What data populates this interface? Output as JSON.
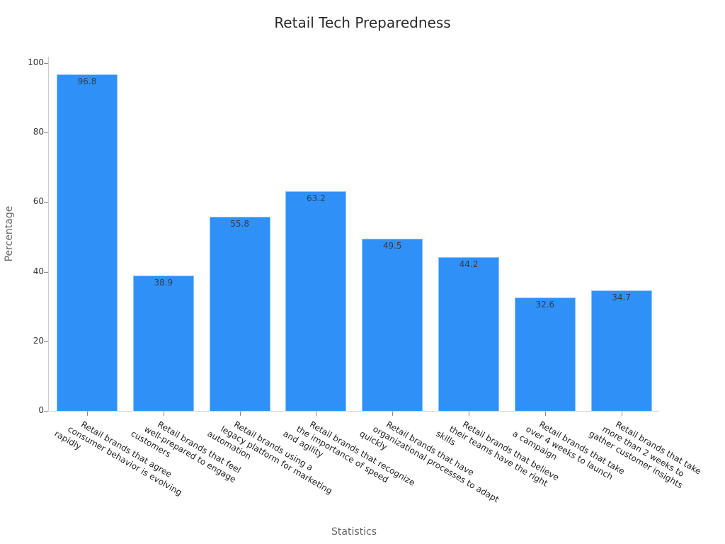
{
  "chart_data": {
    "type": "bar",
    "title": "Retail Tech Preparedness",
    "xlabel": "Statistics",
    "ylabel": "Percentage",
    "ylim": [
      0,
      100
    ],
    "yticks": [
      0,
      20,
      40,
      60,
      80,
      100
    ],
    "grid": false,
    "legend": null,
    "bar_color": "#2f91f7",
    "categories": [
      "Retail brands that agree consumer behavior is evolving rapidly",
      "Retail brands that feel well-prepared to engage customers",
      "Retail brands using a legacy platform for marketing automation",
      "Retail brands that recognize the importance of speed and agility",
      "Retail brands that have organizational processes to adapt quickly",
      "Retail brands that believe their teams have the right skills",
      "Retail brands that take over 4 weeks to launch a campaign",
      "Retail brands that take more than 2 weeks to gather customer insights"
    ],
    "category_lines": [
      [
        "Retail brands that agree",
        "consumer behavior is evolving",
        "rapidly"
      ],
      [
        "Retail brands that feel",
        "well-prepared to engage",
        "customers"
      ],
      [
        "Retail brands using a",
        "legacy platform for marketing",
        "automation"
      ],
      [
        "Retail brands that recognize",
        "the importance of speed",
        "and agility"
      ],
      [
        "Retail brands that have",
        "organizational processes to adapt",
        "quickly"
      ],
      [
        "Retail brands that believe",
        "their teams have the right",
        "skills"
      ],
      [
        "Retail brands that take",
        "over 4 weeks to launch",
        "a campaign"
      ],
      [
        "Retail brands that take",
        "more than 2 weeks to",
        "gather customer insights"
      ]
    ],
    "values": [
      96.8,
      38.9,
      55.8,
      63.2,
      49.5,
      44.2,
      32.6,
      34.7
    ],
    "value_labels": [
      "96.8",
      "38.9",
      "55.8",
      "63.2",
      "49.5",
      "44.2",
      "32.6",
      "34.7"
    ]
  }
}
